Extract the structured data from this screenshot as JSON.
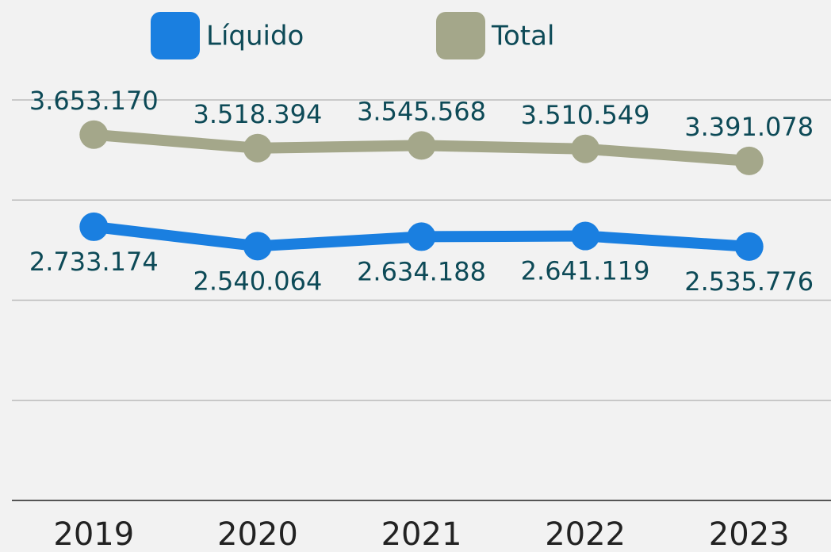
{
  "chart_data": {
    "type": "line",
    "x": [
      "2019",
      "2020",
      "2021",
      "2022",
      "2023"
    ],
    "series": [
      {
        "name": "Líquido",
        "color": "#1a7fe0",
        "values": [
          2733174,
          2540064,
          2634188,
          2641119,
          2535776
        ],
        "value_labels": [
          "2.733.174",
          "2.540.064",
          "2.634.188",
          "2.641.119",
          "2.535.776"
        ]
      },
      {
        "name": "Total",
        "color": "#a4a78a",
        "values": [
          3653170,
          3518394,
          3545568,
          3510549,
          3391078
        ],
        "value_labels": [
          "3.653.170",
          "3.518.394",
          "3.545.568",
          "3.510.549",
          "3.391.078"
        ]
      }
    ],
    "ylim": [
      0,
      4000000
    ],
    "yticks": [
      0,
      1000000,
      2000000,
      3000000,
      4000000
    ],
    "grid": true
  }
}
